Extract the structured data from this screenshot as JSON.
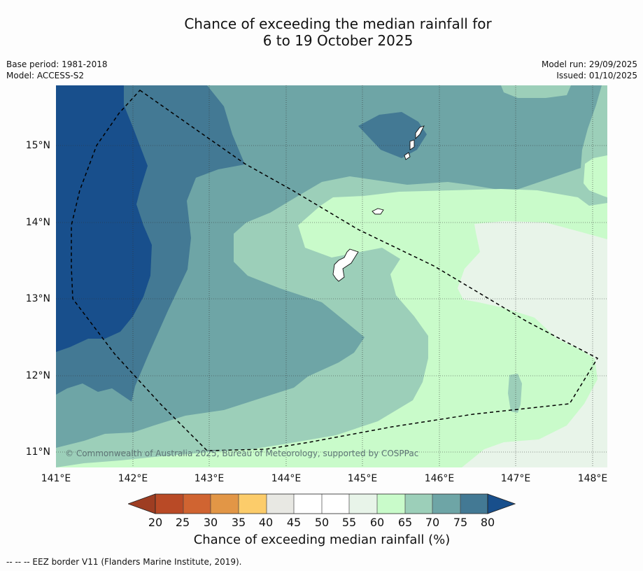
{
  "title": {
    "line1": "Chance of exceeding the median rainfall for",
    "line2": "6 to 19 October 2025"
  },
  "meta": {
    "base_period": "Base period: 1981-2018",
    "model": "Model: ACCESS-S2",
    "model_run": "Model run: 29/09/2025",
    "issued": "Issued: 01/10/2025"
  },
  "map": {
    "latitude_labels": [
      "15°N",
      "14°N",
      "13°N",
      "12°N",
      "11°N"
    ],
    "longitude_labels": [
      "141°E",
      "142°E",
      "143°E",
      "144°E",
      "145°E",
      "146°E",
      "147°E",
      "148°E"
    ],
    "extent": {
      "lon_min": 141.0,
      "lon_max": 148.2,
      "lat_min": 10.8,
      "lat_max": 15.78
    },
    "copyright": "© Commonwealth of Australia 2025, Bureau of Meteorology, supported by COSPPac"
  },
  "colorbar": {
    "labels": [
      "20",
      "25",
      "30",
      "35",
      "40",
      "45",
      "50",
      "55",
      "60",
      "65",
      "70",
      "75",
      "80"
    ],
    "colors": {
      "below_20": "#9e3d22",
      "20_25": "#b94a26",
      "25_30": "#d06431",
      "30_35": "#e29646",
      "35_40": "#fccc6a",
      "40_45": "#e8e8e3",
      "45_50": "#ffffff",
      "50_55": "#ffffff",
      "55_60": "#e8f4e9",
      "60_65": "#c9fbca",
      "65_70": "#9ccfb9",
      "70_75": "#6ea5a6",
      "75_80": "#437994",
      "above_80": "#184f8c"
    },
    "title": "Chance of exceeding median rainfall (%)"
  },
  "footnote": "--  --  -- EEZ border V11 (Flanders Marine Institute, 2019)."
}
